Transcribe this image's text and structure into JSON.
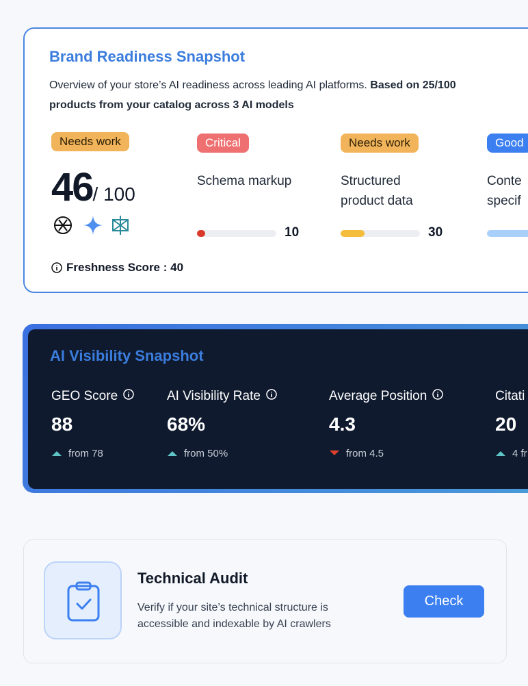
{
  "brand_readiness": {
    "title": "Brand Readiness Snapshot",
    "description": "Overview of your store’s AI readiness across leading AI platforms.",
    "description_bold": "Based on 25/100 products from your catalog across 3 AI models",
    "overall": {
      "badge": "Needs work",
      "score": 46,
      "max": "/ 100"
    },
    "freshness": "Freshness Score : 40",
    "metrics": [
      {
        "badge": "Critical",
        "status": "critical",
        "label": "Schema markup",
        "value": 10
      },
      {
        "badge": "Needs work",
        "status": "warning",
        "label": "Structured product data",
        "value": 30
      },
      {
        "badge": "Good",
        "status": "good",
        "label": "Conte specif"
      }
    ]
  },
  "ai_visibility": {
    "title": "AI Visibility Snapshot",
    "metrics": [
      {
        "label": "GEO Score",
        "value": "88",
        "change": "from 78",
        "trend": "up"
      },
      {
        "label": "AI Visibility Rate",
        "value": "68%",
        "change": "from 50%",
        "trend": "up"
      },
      {
        "label": "Average Position",
        "value": "4.3",
        "change": "from 4.5",
        "trend": "down"
      },
      {
        "label": "Citati",
        "value": "20",
        "change": "4 fr",
        "trend": "up"
      }
    ]
  },
  "technical_audit": {
    "title": "Technical Audit",
    "description": "Verify if your site’s technical structure is accessible and indexable by AI crawlers",
    "button": "Check"
  }
}
